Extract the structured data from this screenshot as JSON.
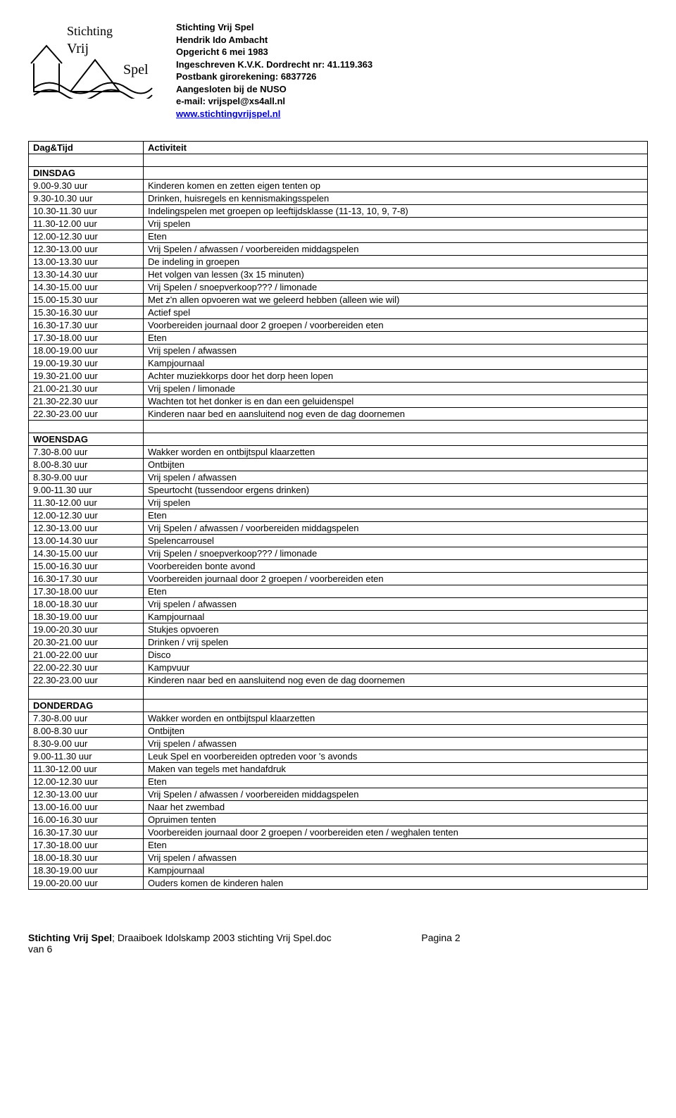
{
  "org": {
    "name": "Stichting Vrij Spel",
    "address": "Hendrik Ido Ambacht",
    "founded": "Opgericht 6 mei 1983",
    "registered": "Ingeschreven K.V.K. Dordrecht nr: 41.119.363",
    "bank": "Postbank girorekening: 6837726",
    "member": "Aangesloten bij de NUSO",
    "email_label": "e-mail: vrijspel@xs4all.nl",
    "website": "www.stichtingvrijspel.nl"
  },
  "table_headers": {
    "time": "Dag&Tijd",
    "activity": "Activiteit"
  },
  "days": [
    {
      "name": "DINSDAG",
      "rows": [
        [
          "9.00-9.30 uur",
          "Kinderen komen en zetten eigen tenten op"
        ],
        [
          "9.30-10.30 uur",
          "Drinken, huisregels en kennismakingsspelen"
        ],
        [
          "10.30-11.30 uur",
          "Indelingspelen met groepen op leeftijdsklasse (11-13, 10, 9, 7-8)"
        ],
        [
          "11.30-12.00 uur",
          "Vrij spelen"
        ],
        [
          "12.00-12.30 uur",
          "Eten"
        ],
        [
          "12.30-13.00 uur",
          "Vrij Spelen / afwassen / voorbereiden middagspelen"
        ],
        [
          "13.00-13.30 uur",
          "De indeling in groepen"
        ],
        [
          "13.30-14.30 uur",
          "Het volgen van lessen (3x 15 minuten)"
        ],
        [
          "14.30-15.00 uur",
          "Vrij Spelen / snoepverkoop??? / limonade"
        ],
        [
          "15.00-15.30 uur",
          "Met z'n allen opvoeren wat we geleerd hebben (alleen wie wil)"
        ],
        [
          "15.30-16.30 uur",
          "Actief spel"
        ],
        [
          "16.30-17.30 uur",
          "Voorbereiden journaal door 2 groepen / voorbereiden eten"
        ],
        [
          "17.30-18.00 uur",
          "Eten"
        ],
        [
          "18.00-19.00 uur",
          "Vrij spelen / afwassen"
        ],
        [
          "19.00-19.30 uur",
          "Kampjournaal"
        ],
        [
          "19.30-21.00 uur",
          "Achter muziekkorps door het dorp heen lopen"
        ],
        [
          "21.00-21.30 uur",
          "Vrij spelen / limonade"
        ],
        [
          "21.30-22.30 uur",
          "Wachten tot het donker is en dan een geluidenspel"
        ],
        [
          "22.30-23.00 uur",
          "Kinderen naar bed en aansluitend nog even de dag doornemen"
        ]
      ]
    },
    {
      "name": "WOENSDAG",
      "rows": [
        [
          "7.30-8.00 uur",
          "Wakker worden en ontbijtspul klaarzetten"
        ],
        [
          "8.00-8.30 uur",
          "Ontbijten"
        ],
        [
          "8.30-9.00 uur",
          "Vrij spelen / afwassen"
        ],
        [
          "9.00-11.30 uur",
          "Speurtocht (tussendoor ergens drinken)"
        ],
        [
          "11.30-12.00 uur",
          "Vrij spelen"
        ],
        [
          "12.00-12.30 uur",
          "Eten"
        ],
        [
          "12.30-13.00 uur",
          "Vrij Spelen / afwassen / voorbereiden middagspelen"
        ],
        [
          "13.00-14.30 uur",
          "Spelencarrousel"
        ],
        [
          "14.30-15.00 uur",
          "Vrij Spelen / snoepverkoop??? / limonade"
        ],
        [
          "15.00-16.30 uur",
          "Voorbereiden bonte avond"
        ],
        [
          "16.30-17.30 uur",
          "Voorbereiden journaal door 2 groepen / voorbereiden eten"
        ],
        [
          "17.30-18.00 uur",
          "Eten"
        ],
        [
          "18.00-18.30 uur",
          "Vrij spelen / afwassen"
        ],
        [
          "18.30-19.00 uur",
          "Kampjournaal"
        ],
        [
          "19.00-20.30 uur",
          "Stukjes opvoeren"
        ],
        [
          "20.30-21.00 uur",
          "Drinken / vrij spelen"
        ],
        [
          "21.00-22.00 uur",
          "Disco"
        ],
        [
          "22.00-22.30 uur",
          "Kampvuur"
        ],
        [
          "22.30-23.00 uur",
          "Kinderen naar bed en aansluitend nog even de dag doornemen"
        ]
      ]
    },
    {
      "name": "DONDERDAG",
      "rows": [
        [
          "7.30-8.00 uur",
          "Wakker worden en ontbijtspul klaarzetten"
        ],
        [
          "8.00-8.30 uur",
          "Ontbijten"
        ],
        [
          "8.30-9.00 uur",
          "Vrij spelen / afwassen"
        ],
        [
          "9.00-11.30 uur",
          "Leuk Spel en voorbereiden optreden voor 's avonds"
        ],
        [
          "11.30-12.00 uur",
          "Maken van tegels met handafdruk"
        ],
        [
          "12.00-12.30 uur",
          "Eten"
        ],
        [
          "12.30-13.00 uur",
          "Vrij Spelen / afwassen / voorbereiden middagspelen"
        ],
        [
          "13.00-16.00 uur",
          "Naar het zwembad"
        ],
        [
          "16.00-16.30 uur",
          "Opruimen tenten"
        ],
        [
          "16.30-17.30 uur",
          "Voorbereiden journaal door 2 groepen / voorbereiden eten / weghalen tenten"
        ],
        [
          "17.30-18.00 uur",
          "Eten"
        ],
        [
          "18.00-18.30 uur",
          "Vrij spelen / afwassen"
        ],
        [
          "18.30-19.00 uur",
          "Kampjournaal"
        ],
        [
          "19.00-20.00 uur",
          "Ouders komen de kinderen halen"
        ]
      ]
    }
  ],
  "footer": {
    "org": "Stichting Vrij Spel",
    "doc": "Draaiboek Idolskamp 2003 stichting Vrij Spel.doc",
    "page_label": "Pagina 2",
    "of": "van 6"
  }
}
